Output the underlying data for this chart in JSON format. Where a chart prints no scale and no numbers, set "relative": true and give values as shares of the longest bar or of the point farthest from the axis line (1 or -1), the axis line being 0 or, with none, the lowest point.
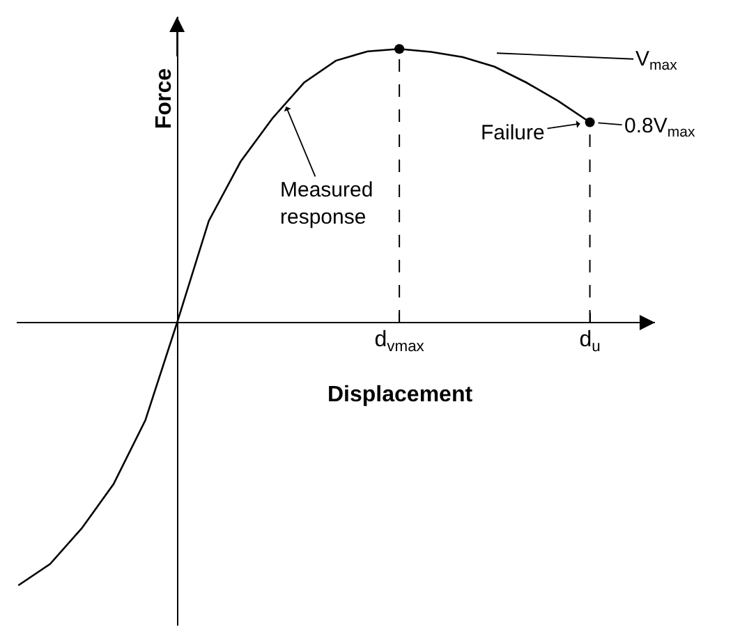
{
  "chart_data": {
    "type": "line",
    "relative": true,
    "xlabel": "Displacement",
    "ylabel": "Force",
    "categories": [
      null,
      null,
      null,
      null,
      null,
      null,
      null,
      null,
      null,
      null,
      null,
      null,
      "d$_{vmax}$",
      null,
      null,
      null,
      null,
      null,
      "d$_{u}$"
    ],
    "tick_labels": "x",
    "series": [
      {
        "color": "#000000",
        "marker": "none",
        "values": [
          -0.96,
          -0.882,
          -0.751,
          -0.59,
          -0.357,
          0,
          0.372,
          0.588,
          0.746,
          0.877,
          0.957,
          0.991,
          1,
          0.989,
          0.97,
          0.935,
          0.877,
          0.81,
          0.732
        ]
      },
      {
        "type": "scatter",
        "color": "#000000",
        "marker": "circle",
        "x": [
          "d$_{vmax}$",
          "d$_{u}$"
        ],
        "values": [
          1,
          0.732
        ]
      },
      {
        "color": "#000000",
        "line_style": "dashed",
        "x": [
          "d$_{vmax}$",
          "d$_{vmax}$"
        ],
        "values": [
          0,
          1
        ]
      },
      {
        "color": "#000000",
        "line_style": "dashed",
        "x": [
          "d$_{u}$",
          "d$_{u}$"
        ],
        "values": [
          0,
          0.732
        ]
      }
    ],
    "annotations": [
      "Measured\nresponse",
      {
        "text": "V$_{max}$",
        "x": "d$_{vmax}$",
        "y": 1
      },
      {
        "text": "Failure",
        "x": "d$_{u}$",
        "y": 0.732
      },
      {
        "text": "0.8V$_{max}$",
        "x": "d$_{u}$",
        "y": 0.732
      }
    ]
  }
}
